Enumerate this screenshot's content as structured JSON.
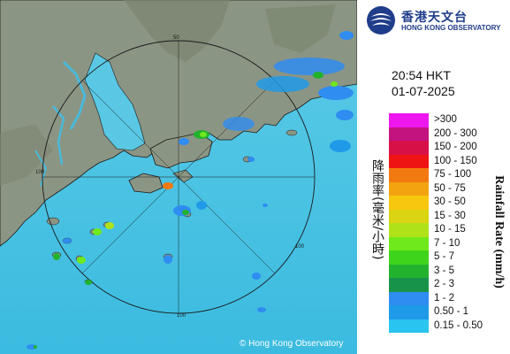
{
  "logo": {
    "emblem": "hko-emblem-icon",
    "name_cn": "香港天文台",
    "name_en": "HONG KONG OBSERVATORY"
  },
  "timestamp": {
    "time": "20:54 HKT",
    "date": "01-07-2025"
  },
  "map": {
    "copyright": "© Hong Kong Observatory",
    "range_ring_labels": [
      "50",
      "100",
      "100",
      "100"
    ],
    "colors": {
      "sea": "#46c7e6",
      "land": "#8a9483",
      "range_ring": "#1a1a1a"
    }
  },
  "legend": {
    "title_cn": "降雨率(毫米/小時)",
    "title_en": "Rainfall Rate (mm/h)",
    "items": [
      {
        "label": ">300",
        "color": "#ef17ef"
      },
      {
        "label": "200 - 300",
        "color": "#c2137f"
      },
      {
        "label": "150 - 200",
        "color": "#d81048"
      },
      {
        "label": "100 - 150",
        "color": "#ef1414"
      },
      {
        "label": "75 - 100",
        "color": "#f37a11"
      },
      {
        "label": "50 - 75",
        "color": "#f2a30f"
      },
      {
        "label": "30 - 50",
        "color": "#f7c70f"
      },
      {
        "label": "15 - 30",
        "color": "#dbd412"
      },
      {
        "label": "10 - 15",
        "color": "#b0e21a"
      },
      {
        "label": "7 - 10",
        "color": "#6fe91c"
      },
      {
        "label": "5 - 7",
        "color": "#3fd41c"
      },
      {
        "label": "3 - 5",
        "color": "#23b22e"
      },
      {
        "label": "2 - 3",
        "color": "#18944a"
      },
      {
        "label": "1 - 2",
        "color": "#2f8cf0"
      },
      {
        "label": "0.50 - 1",
        "color": "#1e9ae8"
      },
      {
        "label": "0.15 - 0.50",
        "color": "#29c4ef"
      }
    ]
  }
}
